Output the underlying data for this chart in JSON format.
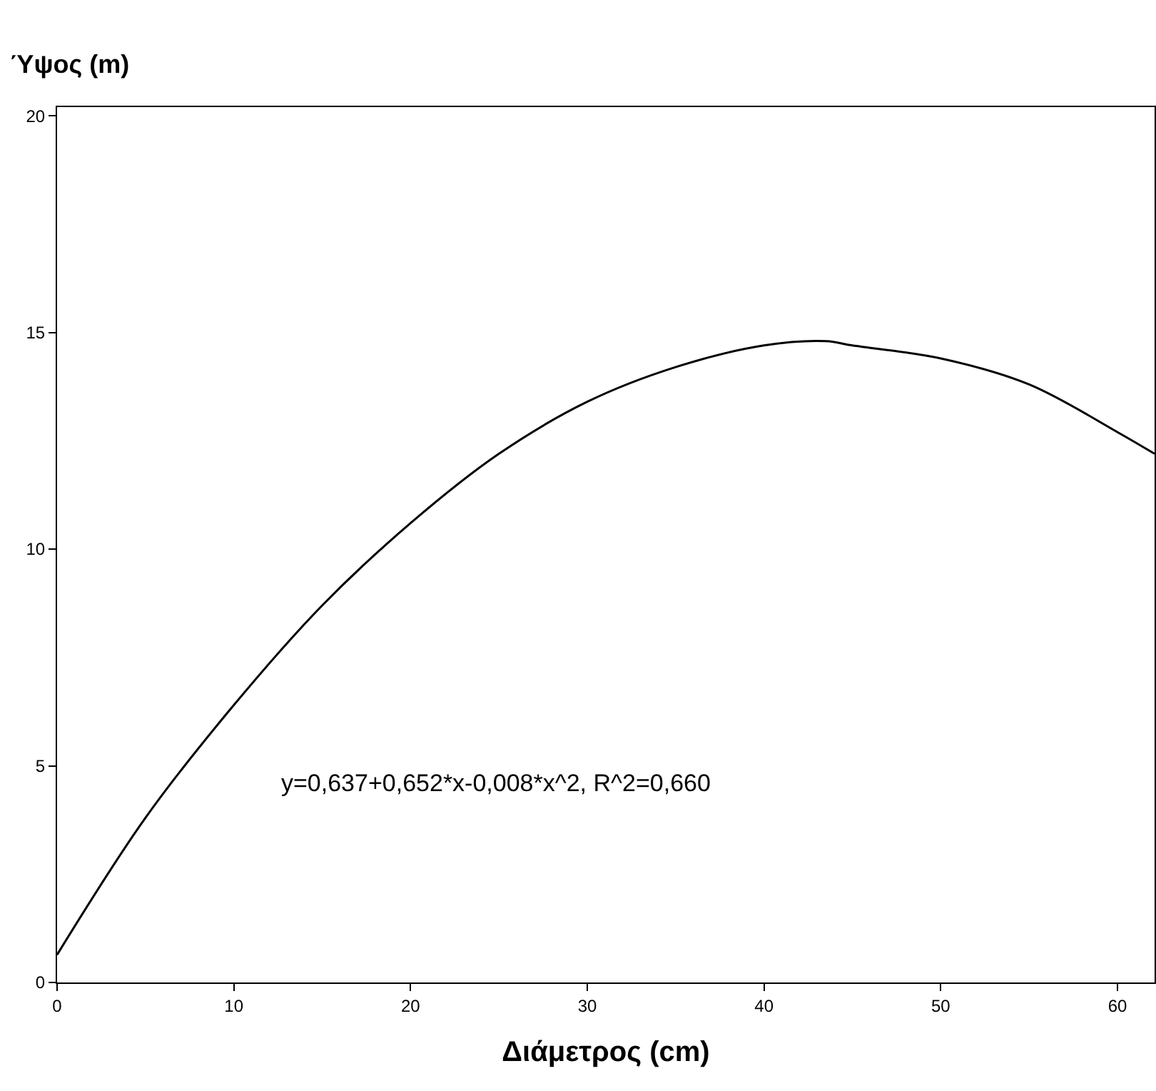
{
  "chart_data": {
    "type": "line",
    "xlabel": "Διάμετρος (cm)",
    "ylabel": "Ύψος (m)",
    "x": [
      0,
      5,
      10,
      15,
      20,
      25,
      30,
      35,
      40,
      43.5,
      45,
      50,
      55,
      60,
      62.1
    ],
    "series": [
      {
        "color": "#000000",
        "values": [
          0.64,
          3.8,
          6.4,
          8.7,
          10.6,
          12.2,
          13.4,
          14.2,
          14.7,
          14.8,
          14.7,
          14.4,
          13.8,
          12.7,
          12.2
        ]
      }
    ],
    "xlim": [
      0,
      62.1
    ],
    "ylim": [
      0,
      20.2
    ],
    "xticks": [
      0,
      10,
      20,
      30,
      40,
      50,
      60
    ],
    "yticks": [
      0,
      5,
      10,
      15,
      20
    ],
    "legend": false,
    "marker": "none",
    "line_style": "solid",
    "annotations": [
      "y=0,637+0,652*x-0,008*x^2, R^2=0,660"
    ]
  }
}
